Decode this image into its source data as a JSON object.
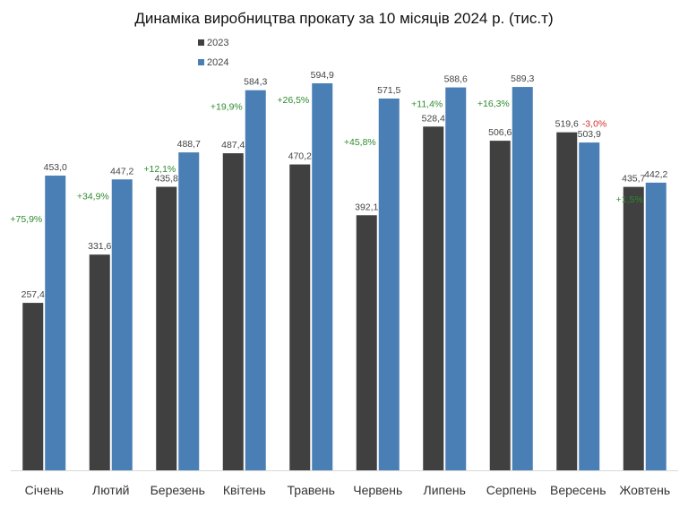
{
  "chart_data": {
    "type": "bar",
    "title": "Динаміка виробництва прокату за 10 місяців 2024 р. (тис.т)",
    "categories": [
      "Січень",
      "Лютий",
      "Березень",
      "Квітень",
      "Травень",
      "Червень",
      "Липень",
      "Серпень",
      "Вересень",
      "Жовтень"
    ],
    "series": [
      {
        "name": "2023",
        "color": "#404040",
        "values": [
          257.4,
          331.6,
          435.8,
          487.4,
          470.2,
          392.1,
          528.4,
          506.6,
          519.6,
          435.7
        ],
        "labels": [
          "257,4",
          "331,6",
          "435,8",
          "487,4",
          "470,2",
          "392,1",
          "528,4",
          "506,6",
          "519,6",
          "435,7"
        ]
      },
      {
        "name": "2024",
        "color": "#4a7fb5",
        "values": [
          453.0,
          447.2,
          488.7,
          584.3,
          594.9,
          571.5,
          588.6,
          589.3,
          503.9,
          442.2
        ],
        "labels": [
          "453,0",
          "447,2",
          "488,7",
          "584,3",
          "594,9",
          "571,5",
          "588,6",
          "589,3",
          "503,9",
          "442,2"
        ]
      }
    ],
    "change_labels": [
      "+75,9%",
      "+34,9%",
      "+12,1%",
      "+19,9%",
      "+26,5%",
      "+45,8%",
      "+11,4%",
      "+16,3%",
      "-3,0%",
      "+1,5%"
    ],
    "change_colors": {
      "positive": "#2e8b2e",
      "negative": "#d0312d"
    },
    "ylim": [
      0,
      640
    ],
    "grid": false,
    "legend_position": "top-center"
  }
}
